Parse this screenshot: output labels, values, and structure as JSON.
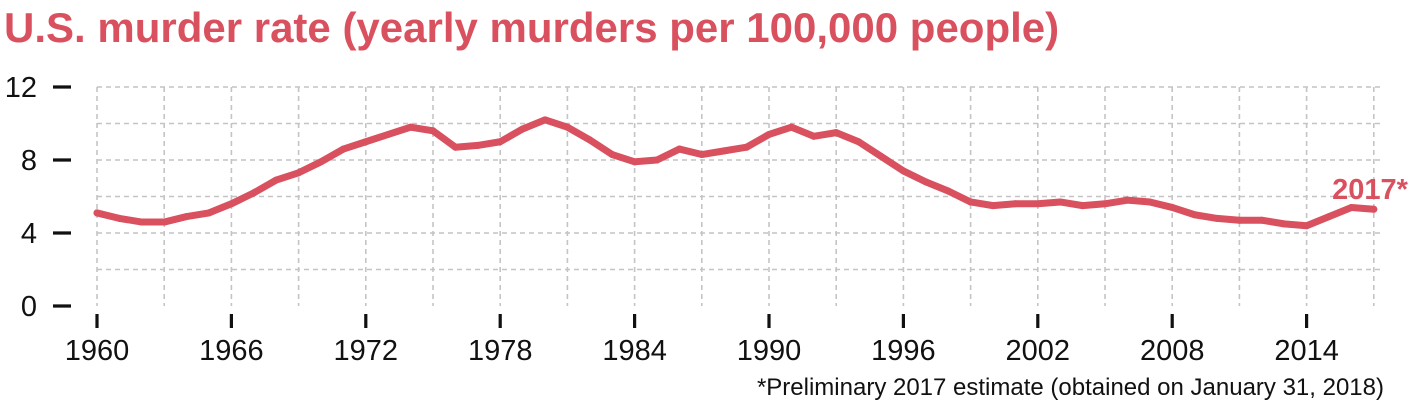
{
  "chart_data": {
    "type": "line",
    "title": "U.S. murder rate (yearly murders per 100,000 people)",
    "footnote": "*Preliminary 2017 estimate (obtained on January 31, 2018)",
    "annotation": "2017*",
    "xlabel": "",
    "ylabel": "",
    "x_ticks": [
      "1960",
      "1966",
      "1972",
      "1978",
      "1984",
      "1990",
      "1996",
      "2002",
      "2008",
      "2014"
    ],
    "y_ticks": [
      "0",
      "4",
      "8",
      "12"
    ],
    "xlim": [
      1960,
      2017
    ],
    "ylim": [
      0,
      12
    ],
    "grid": true,
    "color": "#d9505f",
    "series": [
      {
        "x": [
          1960,
          1961,
          1962,
          1963,
          1964,
          1965,
          1966,
          1967,
          1968,
          1969,
          1970,
          1971,
          1972,
          1973,
          1974,
          1975,
          1976,
          1977,
          1978,
          1979,
          1980,
          1981,
          1982,
          1983,
          1984,
          1985,
          1986,
          1987,
          1988,
          1989,
          1990,
          1991,
          1992,
          1993,
          1994,
          1995,
          1996,
          1997,
          1998,
          1999,
          2000,
          2001,
          2002,
          2003,
          2004,
          2005,
          2006,
          2007,
          2008,
          2009,
          2010,
          2011,
          2012,
          2013,
          2014,
          2015,
          2016,
          2017
        ],
        "values": [
          5.1,
          4.8,
          4.6,
          4.6,
          4.9,
          5.1,
          5.6,
          6.2,
          6.9,
          7.3,
          7.9,
          8.6,
          9.0,
          9.4,
          9.8,
          9.6,
          8.7,
          8.8,
          9.0,
          9.7,
          10.2,
          9.8,
          9.1,
          8.3,
          7.9,
          8.0,
          8.6,
          8.3,
          8.5,
          8.7,
          9.4,
          9.8,
          9.3,
          9.5,
          9.0,
          8.2,
          7.4,
          6.8,
          6.3,
          5.7,
          5.5,
          5.6,
          5.6,
          5.7,
          5.5,
          5.6,
          5.8,
          5.7,
          5.4,
          5.0,
          4.8,
          4.7,
          4.7,
          4.5,
          4.4,
          4.9,
          5.4,
          5.3
        ]
      }
    ]
  }
}
